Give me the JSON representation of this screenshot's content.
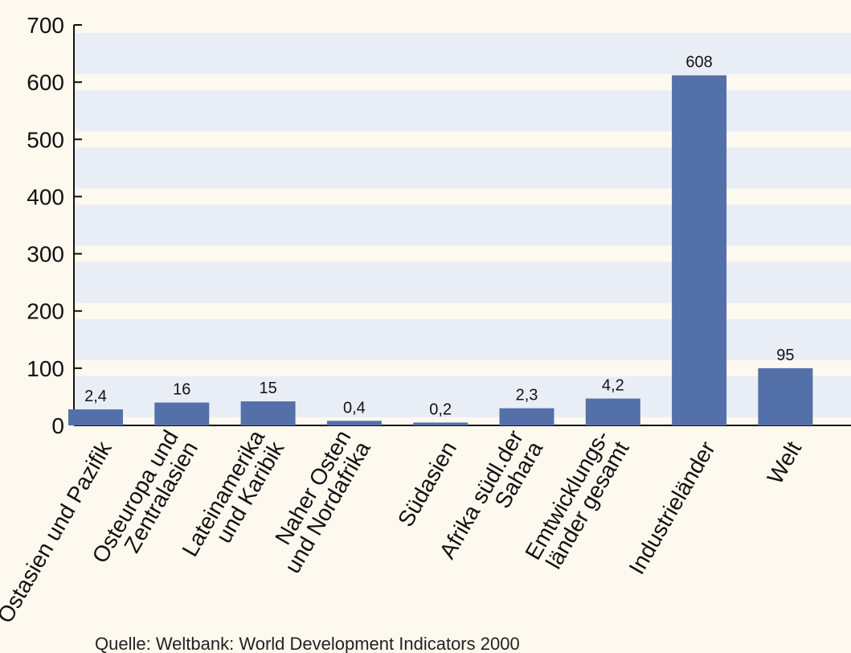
{
  "chart_data": {
    "type": "bar",
    "categories": [
      "Ostasien und Pazifik",
      "Osteuropa und\nZentralasien",
      "Lateinamerika\nund Karibik",
      "Naher Osten\nund Nordafrika",
      "Südasien",
      "Afrika südl.der\nSahara",
      "Emtwicklungs-\nländer gesamt",
      "Industrieländer",
      "Welt"
    ],
    "values": [
      28,
      40,
      42,
      8,
      5,
      30,
      47,
      612,
      100
    ],
    "annotations": [
      "2,4",
      "16",
      "15",
      "0,4",
      "0,2",
      "2,3",
      "4,2",
      "608",
      "95"
    ],
    "color": "#5470a8",
    "ylim": [
      0,
      700
    ],
    "yticks": [
      0,
      100,
      200,
      300,
      400,
      500,
      600,
      700
    ],
    "grid": true,
    "source": "Quelle: Weltbank: World Development Indicators 2000"
  }
}
